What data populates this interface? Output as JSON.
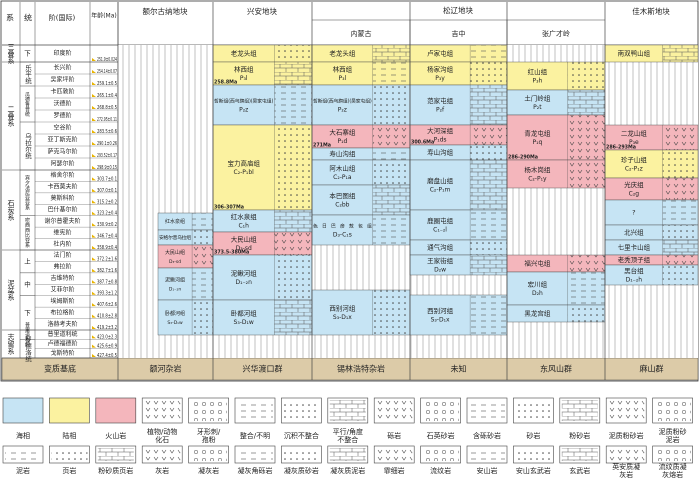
{
  "header": {
    "system": "系",
    "series": "统",
    "stage": "阶(国际)",
    "age": "年龄(Ma)",
    "basement": "变质基底"
  },
  "systems": [
    "三叠系",
    "二叠系",
    "石炭系",
    "泥盆系",
    "志留系"
  ],
  "series": [
    "下",
    "乐平统",
    "瓜德鲁普统",
    "乌拉尔统",
    "宾夕法尼亚亚系",
    "密西西比亚系",
    "上",
    "中",
    "下",
    "普里道利统",
    "罗德洛统"
  ],
  "stages": [
    {
      "name": "印度阶",
      "age": "251.9±0.024"
    },
    {
      "name": "长兴阶",
      "age": "254.14±0.07"
    },
    {
      "name": "吴家坪阶",
      "age": "259.1±0.5"
    },
    {
      "name": "卡匹敦阶",
      "age": "265.1±0.4"
    },
    {
      "name": "沃德阶",
      "age": "268.8±0.5"
    },
    {
      "name": "罗德阶",
      "age": "272.95±0.11"
    },
    {
      "name": "空谷阶",
      "age": "283.5±0.6"
    },
    {
      "name": "亚丁斯克阶",
      "age": "290.1±0.26"
    },
    {
      "name": "萨克马尔阶",
      "age": "293.52±0.17"
    },
    {
      "name": "阿瑟尔阶",
      "age": "298.9±0.15"
    },
    {
      "name": "格舍尔阶",
      "age": "303.7±0.1"
    },
    {
      "name": "卡西莫夫阶",
      "age": "307.0±0.1"
    },
    {
      "name": "莫斯科阶",
      "age": "315.2±0.2"
    },
    {
      "name": "巴什基尔阶",
      "age": "323.2±0.4"
    },
    {
      "name": "谢尔普霍夫阶",
      "age": "330.9±0.2"
    },
    {
      "name": "维宪阶",
      "age": "346.7±0.4"
    },
    {
      "name": "杜内阶",
      "age": "358.9±0.4"
    },
    {
      "name": "法门阶",
      "age": "372.2±1.6"
    },
    {
      "name": "弗拉阶",
      "age": "382.7±1.6"
    },
    {
      "name": "吉维特阶",
      "age": "387.7±0.8"
    },
    {
      "name": "艾菲尔阶",
      "age": "393.3±1.2"
    },
    {
      "name": "埃姆斯阶",
      "age": "407.6±2.6"
    },
    {
      "name": "布拉格阶",
      "age": "410.8±2.8"
    },
    {
      "name": "洛赫考夫阶",
      "age": "419.2±3.2"
    },
    {
      "name": "普里道利统",
      "age": "423.0±2.3"
    },
    {
      "name": "卢德福德阶",
      "age": "425.6±0.9"
    },
    {
      "name": "戈斯特阶",
      "age": "427.4±0.5"
    }
  ],
  "blocks": [
    "额尔古纳地块",
    "兴安地块",
    "松辽地块",
    "佳木斯地块"
  ],
  "columns": [
    {
      "name": "额尔古纳地块",
      "basement": "额河杂岩",
      "units": [
        {
          "name": "红水泉组",
          "code": "C₁h",
          "facies": "marine"
        },
        {
          "name": "安格尔音乌拉组",
          "facies": "marine"
        },
        {
          "name": "大民山组",
          "code": "D₃-sd",
          "facies": "volcanic"
        },
        {
          "name": "泥鳅河组",
          "code": "D₁₋₂n",
          "facies": "marine"
        },
        {
          "name": "卧都河组",
          "code": "S₃-D₁w",
          "facies": "marine"
        }
      ]
    },
    {
      "name": "兴安地块",
      "basement": "兴华渡口群",
      "units": [
        {
          "name": "老龙头组",
          "code": "T₃l",
          "facies": "continental"
        },
        {
          "name": "林西组",
          "code": "P₃l",
          "facies": "continental",
          "age": "258.8Ma"
        },
        {
          "name": "哲斯组(西乌旗组)(吴家屯组)",
          "code": "P₂z",
          "facies": "marine"
        },
        {
          "name": "宝力高庙组",
          "code": "C₂-P₁bl",
          "facies": "continental",
          "age": "306-307Ma"
        },
        {
          "name": "红水泉组",
          "code": "C₁h",
          "facies": "marine"
        },
        {
          "name": "大民山组",
          "code": "D₃-sd",
          "facies": "volcanic",
          "age": "373.5-380Ma"
        },
        {
          "name": "泥鳅河组",
          "code": "D₁₋₂n",
          "facies": "marine"
        },
        {
          "name": "卧都河组",
          "code": "S₃-D₁w",
          "facies": "marine"
        }
      ]
    },
    {
      "name": "内蒙古",
      "basement": "锡林浩特杂岩",
      "units": [
        {
          "name": "老龙头组",
          "code": "T₃l",
          "facies": "continental"
        },
        {
          "name": "林西组",
          "code": "P₃l",
          "facies": "continental"
        },
        {
          "name": "哲斯组(西乌旗组)(吴家屯组)",
          "code": "P₂z",
          "facies": "marine"
        },
        {
          "name": "大石寨组",
          "code": "P₁d",
          "facies": "volcanic",
          "age": "271Ma"
        },
        {
          "name": "寿山沟组",
          "code": "P₁ss",
          "facies": "marine"
        },
        {
          "name": "阿木山组",
          "code": "C₂-P₁a",
          "facies": "marine"
        },
        {
          "name": "本巴图组",
          "code": "C₂bb",
          "facies": "marine"
        },
        {
          "name": "色日巴彦敖包组",
          "code": "D₃-C₁s",
          "facies": "marine"
        },
        {
          "name": "西别河组",
          "code": "S₃-D₁x",
          "facies": "marine"
        }
      ]
    },
    {
      "name": "吉中",
      "basement": "未知",
      "units": [
        {
          "name": "卢家屯组",
          "code": "T₃lj",
          "facies": "continental"
        },
        {
          "name": "杨家沟组",
          "code": "P₃y",
          "facies": "continental"
        },
        {
          "name": "范家屯组",
          "code": "P₂f",
          "facies": "marine"
        },
        {
          "name": "大河深组",
          "code": "P₁ds",
          "facies": "volcanic",
          "age": "300.6Ma"
        },
        {
          "name": "寿山沟组",
          "code": "P₁ss",
          "facies": "marine"
        },
        {
          "name": "磨盘山组",
          "code": "C₂-P₁m",
          "facies": "marine"
        },
        {
          "name": "鹿圈屯组",
          "code": "C₁₋₂l",
          "facies": "marine"
        },
        {
          "name": "通气沟组",
          "code": "C₁t",
          "facies": "marine"
        },
        {
          "name": "王家街组",
          "code": "D₂w",
          "facies": "marine"
        },
        {
          "name": "西别河组",
          "code": "S₃-D₁x",
          "facies": "marine"
        }
      ]
    },
    {
      "name": "张广才岭",
      "basement": "东风山群",
      "units": [
        {
          "name": "红山组",
          "code": "P₃h",
          "facies": "continental"
        },
        {
          "name": "土门岭组",
          "code": "P₂t",
          "facies": "marine"
        },
        {
          "name": "青龙屯组",
          "code": "P₁q",
          "facies": "volcanic",
          "age": "286-290Ma"
        },
        {
          "name": "杨木岗组",
          "code": "C₂-P₁y",
          "facies": "volcanic"
        },
        {
          "name": "福兴屯组",
          "code": "D₃f",
          "facies": "volcanic"
        },
        {
          "name": "宏川组",
          "code": "D₂h",
          "facies": "marine"
        },
        {
          "name": "黑龙宫组",
          "code": "D₁hl",
          "facies": "marine"
        }
      ]
    },
    {
      "name": "佳木斯地块",
      "basement": "麻山群",
      "units": [
        {
          "name": "南双鸭山组",
          "code": "T₂n",
          "facies": "continental"
        },
        {
          "name": "二龙山组",
          "code": "P₃e",
          "facies": "volcanic",
          "age": "286-293Ma"
        },
        {
          "name": "珍子山组",
          "code": "C₂-P₁z",
          "facies": "continental"
        },
        {
          "name": "光庆组",
          "code": "C₂g",
          "facies": "volcanic"
        },
        {
          "name": "?",
          "facies": "marine"
        },
        {
          "name": "北兴组",
          "code": "C₁b",
          "facies": "marine"
        },
        {
          "name": "七里卡山组",
          "code": "D₃q",
          "facies": "marine"
        },
        {
          "name": "老秃顶子组",
          "code": "D₂l",
          "facies": "volcanic"
        },
        {
          "name": "黑台组",
          "code": "D₁₋₂h",
          "facies": "marine"
        }
      ]
    }
  ],
  "legend": [
    [
      {
        "label": "海相",
        "facies": "marine"
      },
      {
        "label": "陆相",
        "facies": "continental"
      },
      {
        "label": "火山岩",
        "facies": "volcanic"
      },
      {
        "label": "植物/动物化石"
      },
      {
        "label": "牙形刺/孢粉"
      },
      {
        "label": "整合/不明"
      },
      {
        "label": "沉积不整合"
      },
      {
        "label": "平行/角度不整合"
      },
      {
        "label": "砾岩"
      },
      {
        "label": "石英砂岩"
      },
      {
        "label": "含砾砂岩"
      },
      {
        "label": "砂岩"
      },
      {
        "label": "粉砂岩"
      },
      {
        "label": "泥质粉砂岩"
      },
      {
        "label": "泥质粉砂泥岩"
      }
    ],
    [
      {
        "label": "泥岩"
      },
      {
        "label": "页岩"
      },
      {
        "label": "粉砂质页岩"
      },
      {
        "label": "灰岩"
      },
      {
        "label": "凝灰岩"
      },
      {
        "label": "凝灰角砾岩"
      },
      {
        "label": "凝灰质砂岩"
      },
      {
        "label": "凝灰质泥岩"
      },
      {
        "label": "霏细岩"
      },
      {
        "label": "流纹岩"
      },
      {
        "label": "安山岩"
      },
      {
        "label": "安山玄武岩"
      },
      {
        "label": "玄武岩"
      },
      {
        "label": "英安质凝灰岩"
      },
      {
        "label": "流纹质凝灰熔岩"
      }
    ]
  ]
}
